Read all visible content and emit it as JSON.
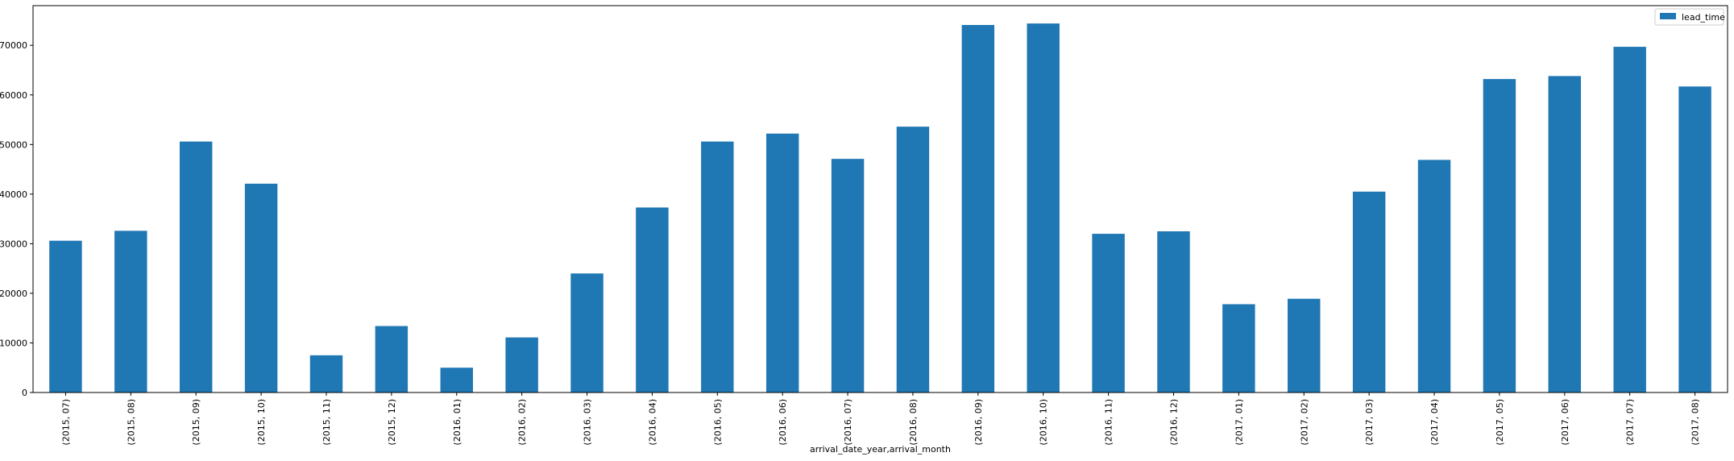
{
  "chart_data": {
    "type": "bar",
    "title": "",
    "xlabel": "arrival_date_year,arrival_month",
    "ylabel": "",
    "ylim": [
      0,
      78000
    ],
    "yticks": [
      0,
      10000,
      20000,
      30000,
      40000,
      50000,
      60000,
      70000
    ],
    "grid": false,
    "legend_position": "top-right",
    "categories": [
      "(2015, 07)",
      "(2015, 08)",
      "(2015, 09)",
      "(2015, 10)",
      "(2015, 11)",
      "(2015, 12)",
      "(2016, 01)",
      "(2016, 02)",
      "(2016, 03)",
      "(2016, 04)",
      "(2016, 05)",
      "(2016, 06)",
      "(2016, 07)",
      "(2016, 08)",
      "(2016, 09)",
      "(2016, 10)",
      "(2016, 11)",
      "(2016, 12)",
      "(2017, 01)",
      "(2017, 02)",
      "(2017, 03)",
      "(2017, 04)",
      "(2017, 05)",
      "(2017, 06)",
      "(2017, 07)",
      "(2017, 08)"
    ],
    "series": [
      {
        "name": "lead_time",
        "color": "#1f77b4",
        "values": [
          30600,
          32600,
          50600,
          42100,
          7500,
          13400,
          5000,
          11100,
          24000,
          37300,
          50600,
          52200,
          47100,
          53600,
          74100,
          74400,
          32000,
          32500,
          17800,
          18900,
          40500,
          46900,
          63200,
          63800,
          69700,
          61700
        ]
      }
    ]
  }
}
